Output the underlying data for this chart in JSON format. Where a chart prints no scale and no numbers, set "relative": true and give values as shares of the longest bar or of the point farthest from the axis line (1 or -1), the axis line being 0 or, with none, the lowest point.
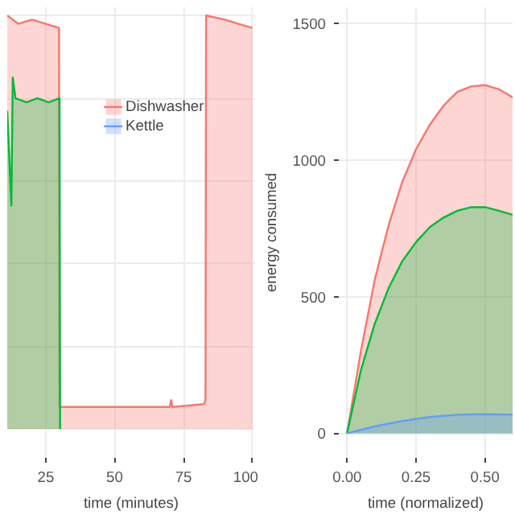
{
  "chart_data": [
    {
      "type": "area",
      "relative": true,
      "xlabel": "time (minutes)",
      "xlim": [
        11,
        101
      ],
      "xticks": [
        25,
        50,
        75,
        100
      ],
      "tick_labels": "x",
      "grid": true,
      "legend": "top right",
      "series": [
        {
          "name": "Dishwasher",
          "color": "#f8766d",
          "x": [
            11,
            15,
            20,
            25,
            29.8,
            30,
            50,
            70,
            70.5,
            71,
            82.5,
            83,
            83.2,
            90,
            95,
            100
          ],
          "values": [
            1.0,
            0.98,
            0.99,
            0.98,
            0.97,
            0.053,
            0.053,
            0.053,
            0.07,
            0.053,
            0.06,
            0.07,
            1.0,
            0.99,
            0.98,
            0.97
          ]
        },
        {
          "color": "#00ba38",
          "x": [
            11,
            12.5,
            13,
            14,
            18,
            22,
            26,
            30,
            30.2
          ],
          "values": [
            0.77,
            0.54,
            0.85,
            0.8,
            0.79,
            0.8,
            0.79,
            0.8,
            0
          ]
        }
      ]
    },
    {
      "type": "area",
      "xlabel": "time (normalized)",
      "ylabel": "energy consumed",
      "xlim": [
        -0.03,
        0.6
      ],
      "xticks": [
        {
          "value": 0,
          "label": "0.00"
        },
        0.25,
        {
          "value": 0.5,
          "label": "0.50"
        }
      ],
      "ylim": [
        -90,
        1560
      ],
      "yticks": [
        0,
        500,
        1000,
        1500
      ],
      "grid": true,
      "series": [
        {
          "name": "Dishwasher",
          "color": "#f8766d",
          "x": [
            0,
            0.05,
            0.1,
            0.15,
            0.2,
            0.25,
            0.3,
            0.35,
            0.4,
            0.45,
            0.5,
            0.55,
            0.6
          ],
          "values": [
            0,
            300,
            560,
            760,
            920,
            1040,
            1130,
            1200,
            1250,
            1270,
            1275,
            1260,
            1230
          ]
        },
        {
          "color": "#00ba38",
          "x": [
            0,
            0.05,
            0.1,
            0.15,
            0.2,
            0.25,
            0.3,
            0.35,
            0.4,
            0.45,
            0.5,
            0.55,
            0.6
          ],
          "values": [
            0,
            230,
            400,
            530,
            630,
            700,
            755,
            790,
            815,
            828,
            828,
            815,
            800
          ]
        },
        {
          "name": "Kettle",
          "color": "#619cff",
          "x": [
            0,
            0.1,
            0.2,
            0.3,
            0.4,
            0.5,
            0.6
          ],
          "values": [
            0,
            25,
            45,
            60,
            68,
            70,
            68
          ]
        }
      ]
    }
  ]
}
